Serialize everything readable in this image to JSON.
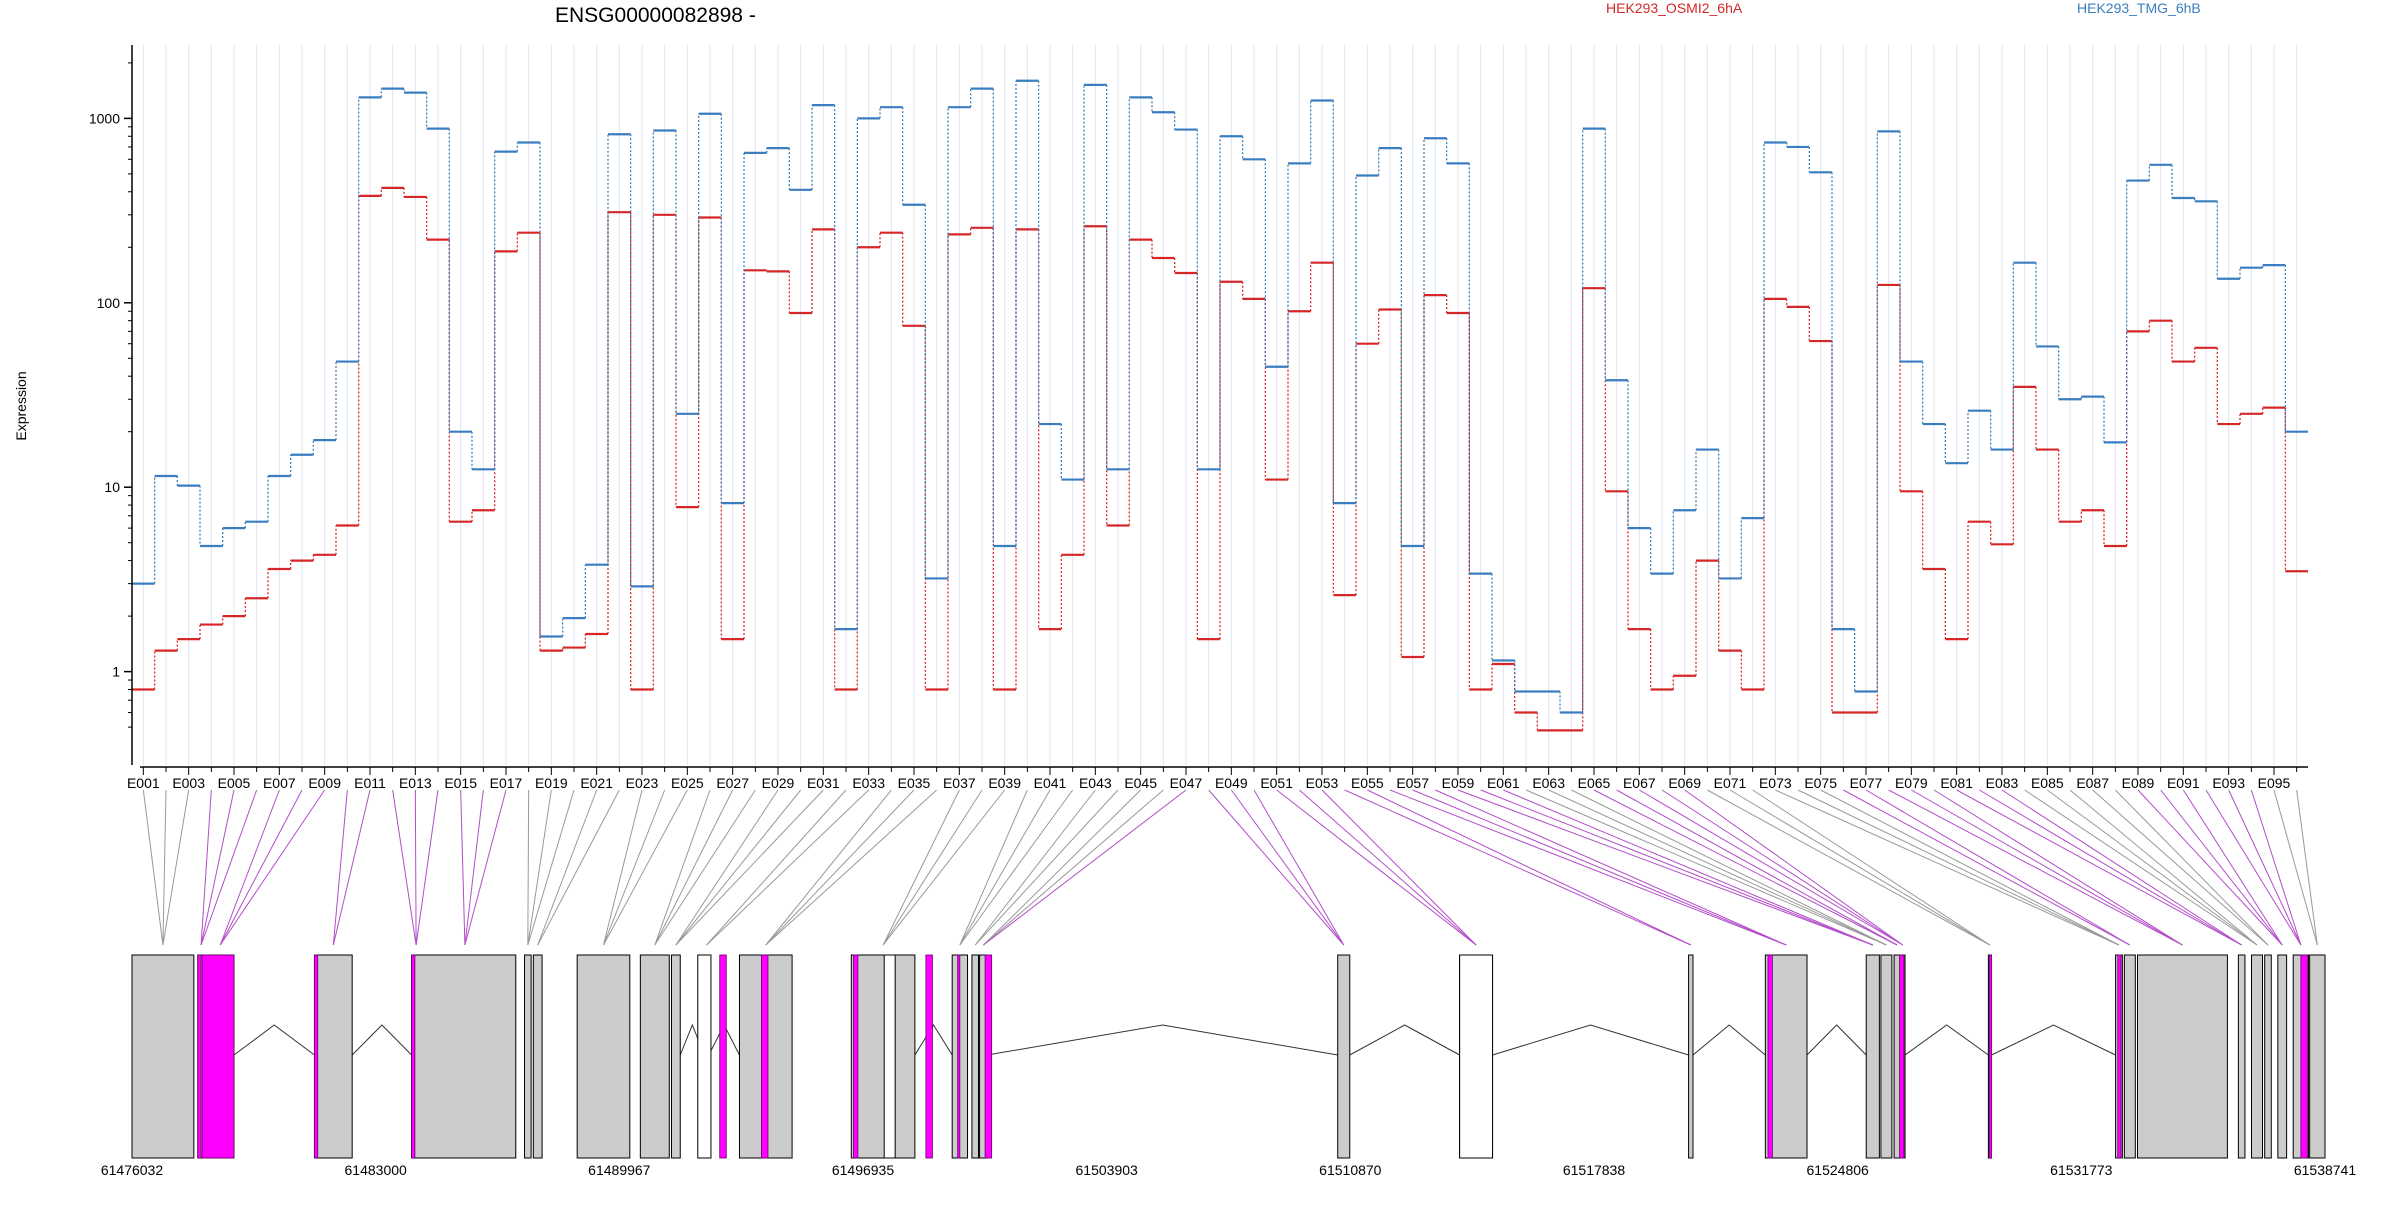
{
  "title": "ENSG00000082898 -",
  "ylabel": "Expression",
  "legend": [
    {
      "label": "HEK293_OSMI2_6hA",
      "color": "#d62728"
    },
    {
      "label": "HEK293_TMG_6hB",
      "color": "#3a7dc0"
    }
  ],
  "colors": {
    "highlight": "#ff00ff",
    "exon": "#cccccc",
    "axis": "#000000",
    "connector": "#999999"
  },
  "chart_data": {
    "type": "line",
    "title": "ENSG00000082898 -",
    "xlabel": "",
    "ylabel": "Expression",
    "yscale": "log",
    "ylim": [
      0.4,
      2500
    ],
    "yticks": [
      1,
      10,
      100,
      1000
    ],
    "ytick_labels": [
      "1",
      "10",
      "100",
      "1000"
    ],
    "grid": false,
    "legend_position": "top",
    "exon_tick_labels": [
      "E001",
      "E003",
      "E005",
      "E007",
      "E009",
      "E011",
      "E013",
      "E015",
      "E017",
      "E019",
      "E021",
      "E023",
      "E025",
      "E027",
      "E029",
      "E031",
      "E033",
      "E035",
      "E037",
      "E039",
      "E041",
      "E043",
      "E045",
      "E047",
      "E049",
      "E051",
      "E053",
      "E055",
      "E057",
      "E059",
      "E061",
      "E063",
      "E065",
      "E067",
      "E069",
      "E071",
      "E073",
      "E075",
      "E077",
      "E079",
      "E081",
      "E083",
      "E085",
      "E087",
      "E089",
      "E091",
      "E093",
      "E095"
    ],
    "series": [
      {
        "name": "HEK293_OSMI2_6hA",
        "color": "#d62728",
        "values": [
          0.8,
          1.3,
          1.5,
          1.8,
          2,
          2.5,
          3.6,
          4,
          4.3,
          6.2,
          380,
          420,
          375,
          220,
          6.5,
          7.5,
          190,
          240,
          1.3,
          1.35,
          1.6,
          310,
          0.8,
          300,
          7.8,
          290,
          1.5,
          150,
          148,
          88,
          250,
          0.8,
          200,
          240,
          75,
          0.8,
          235,
          255,
          0.8,
          250,
          1.7,
          4.3,
          260,
          6.2,
          220,
          175,
          145,
          1.5,
          130,
          105,
          11,
          90,
          165,
          2.6,
          60,
          92,
          1.2,
          110,
          88,
          0.8,
          1.1,
          0.6,
          0.48,
          0.48,
          120,
          9.5,
          1.7,
          0.8,
          0.95,
          4,
          1.3,
          0.8,
          105,
          95,
          62,
          0.6,
          0.6,
          125,
          9.5,
          3.6,
          1.5,
          6.5,
          4.9,
          35,
          16,
          6.5,
          7.5,
          4.8,
          70,
          80,
          48,
          57,
          22,
          25,
          27,
          3.5
        ]
      },
      {
        "name": "HEK293_TMG_6hB",
        "color": "#3a7dc0",
        "values": [
          3,
          11.5,
          10.2,
          4.8,
          6,
          6.5,
          11.5,
          15,
          18,
          48,
          1300,
          1450,
          1380,
          880,
          20,
          12.5,
          660,
          740,
          1.55,
          1.95,
          3.8,
          820,
          2.9,
          860,
          25,
          1060,
          8.2,
          650,
          690,
          410,
          1180,
          1.7,
          1000,
          1150,
          340,
          3.2,
          1150,
          1450,
          4.8,
          1600,
          22,
          11,
          1520,
          12.5,
          1300,
          1080,
          870,
          12.5,
          800,
          600,
          45,
          570,
          1250,
          8.2,
          490,
          690,
          4.8,
          780,
          570,
          3.4,
          1.15,
          0.78,
          0.78,
          0.6,
          880,
          38,
          6,
          3.4,
          7.5,
          16,
          3.2,
          6.8,
          740,
          700,
          510,
          1.7,
          0.78,
          850,
          48,
          22,
          13.5,
          26,
          16,
          165,
          58,
          30,
          31,
          17.5,
          460,
          560,
          370,
          355,
          135,
          155,
          160,
          20
        ]
      }
    ],
    "genomic_axis_labels": [
      "61476032",
      "61483000",
      "61489967",
      "61496935",
      "61503903",
      "61510870",
      "61517838",
      "61524806",
      "61531773",
      "61538741"
    ],
    "genomic_range": [
      61476032,
      61538741
    ]
  }
}
